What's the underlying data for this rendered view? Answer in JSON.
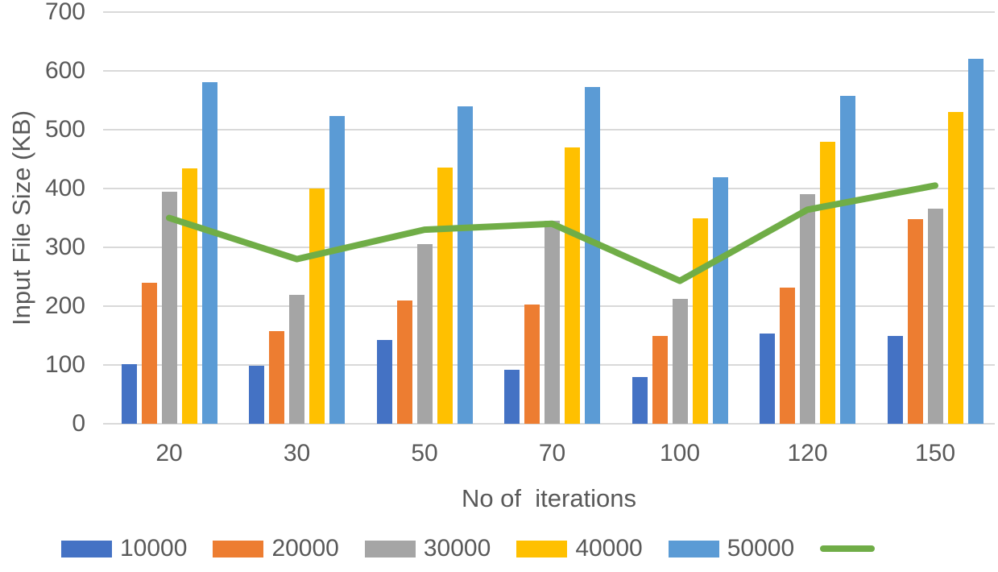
{
  "chart_data": {
    "type": "combo",
    "subtype": "grouped-bar-with-line",
    "title": "",
    "xlabel": "No of  iterations",
    "ylabel": "Input File Size (KB)",
    "categories": [
      "20",
      "30",
      "50",
      "70",
      "100",
      "120",
      "150"
    ],
    "y_axis": {
      "min": 0,
      "max": 700,
      "step": 100,
      "ticks": [
        0,
        100,
        200,
        300,
        400,
        500,
        600,
        700
      ]
    },
    "series": [
      {
        "name": "10000",
        "type": "bar",
        "color": "#4472C4",
        "values": [
          102,
          98,
          142,
          92,
          79,
          153,
          150
        ]
      },
      {
        "name": "20000",
        "type": "bar",
        "color": "#ED7D31",
        "values": [
          240,
          158,
          210,
          203,
          150,
          231,
          348
        ]
      },
      {
        "name": "30000",
        "type": "bar",
        "color": "#A5A5A5",
        "values": [
          395,
          219,
          305,
          345,
          213,
          390,
          366
        ]
      },
      {
        "name": "40000",
        "type": "bar",
        "color": "#FFC000",
        "values": [
          434,
          400,
          436,
          470,
          350,
          480,
          530
        ]
      },
      {
        "name": "50000",
        "type": "bar",
        "color": "#5B9BD5",
        "values": [
          581,
          523,
          540,
          572,
          419,
          558,
          620
        ]
      },
      {
        "name": "",
        "type": "line",
        "color": "#70AD47",
        "values": [
          350,
          280,
          330,
          340,
          243,
          364,
          405
        ]
      }
    ],
    "legend": {
      "position": "bottom",
      "entries": [
        "10000",
        "20000",
        "30000",
        "40000",
        "50000",
        ""
      ]
    },
    "grid": true,
    "colors": {
      "text": "#595959",
      "gridline": "#D9D9D9",
      "background": "#FFFFFF"
    }
  }
}
